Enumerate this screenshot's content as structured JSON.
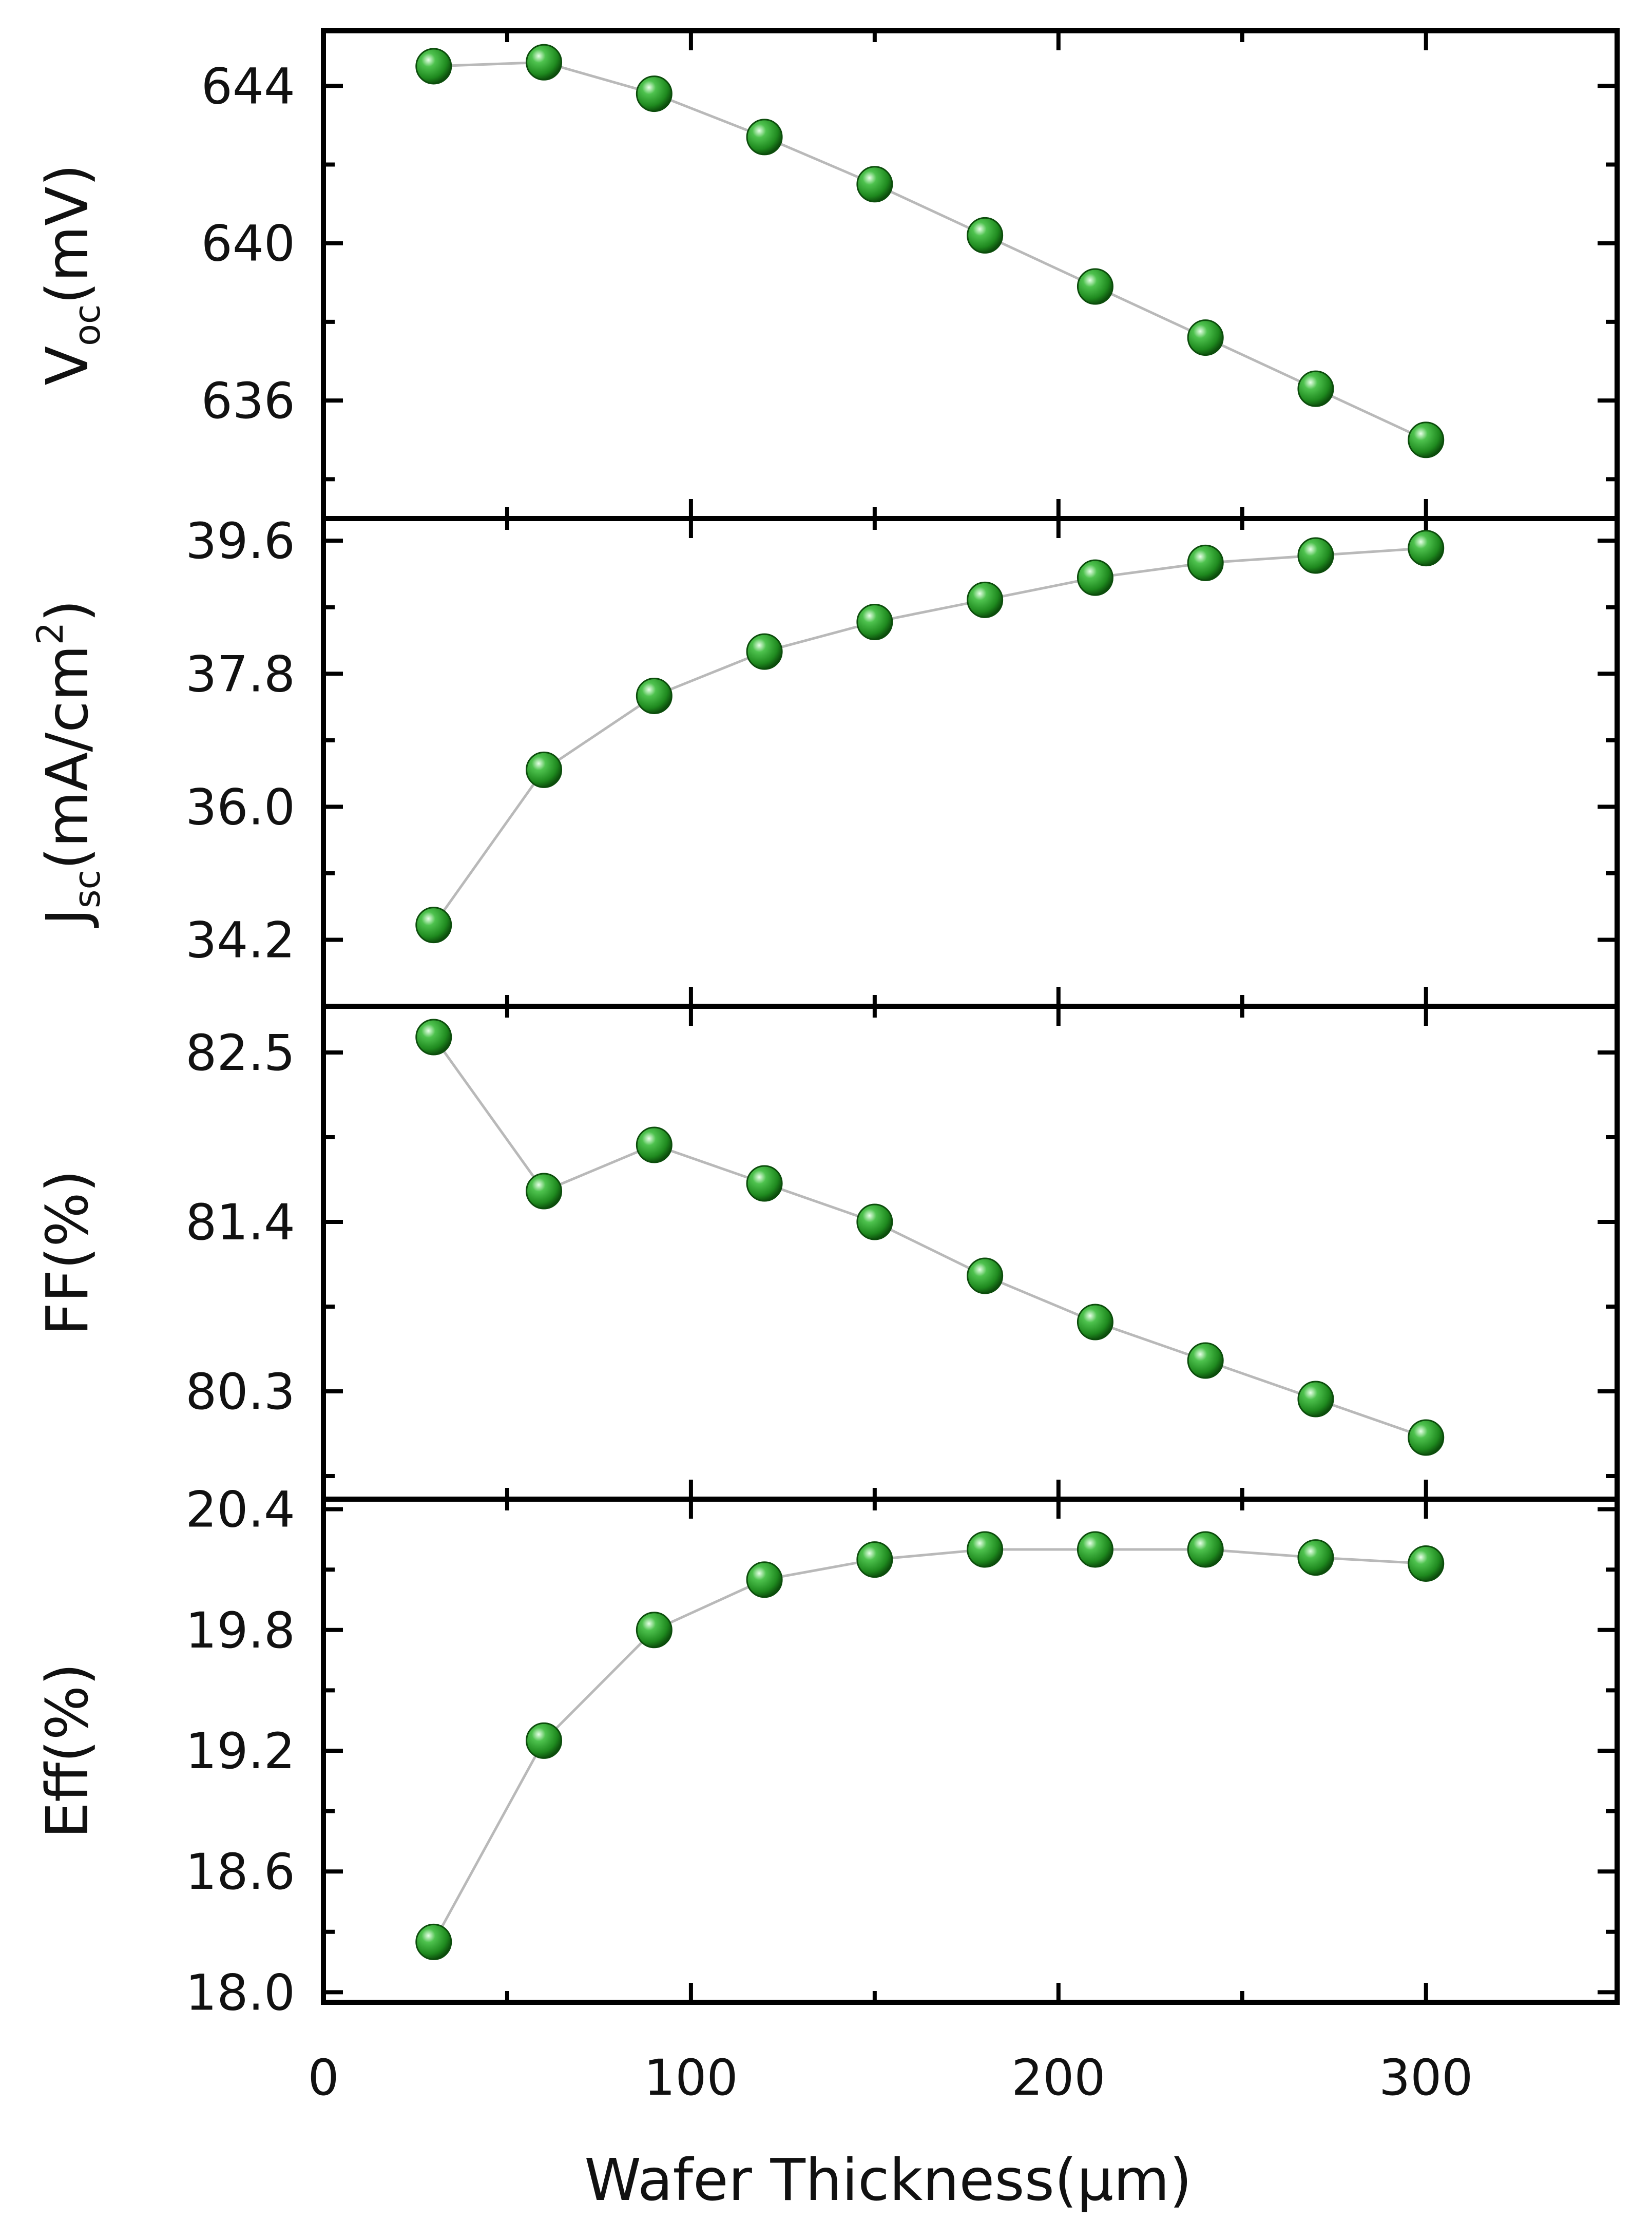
{
  "chart_data": {
    "type": "scatter",
    "layout": "four vertically stacked panels sharing one x axis",
    "grid": false,
    "x_axis": {
      "label": "Wafer Thickness(μm)",
      "range": [
        0,
        352
      ],
      "major_ticks": [
        0,
        100,
        200,
        300
      ],
      "tick_labels": [
        "0",
        "100",
        "200",
        "300"
      ],
      "minor_ticks": [
        50,
        150,
        250
      ]
    },
    "x": [
      30,
      60,
      90,
      120,
      150,
      180,
      210,
      240,
      270,
      300
    ],
    "colors": {
      "marker": "#1f8a1f",
      "marker_edge": "#0c4d0c",
      "connector": "#b9b9b9",
      "frame": "#000000"
    },
    "marker": "green sphere",
    "panels": [
      {
        "key": "voc",
        "ylabel": {
          "main": "V",
          "sub": "oc",
          "suffix": "(mV)"
        },
        "ylim": [
          633,
          645.4
        ],
        "yticks": [
          636,
          640,
          644
        ],
        "ytick_labels": [
          "636",
          "640",
          "644"
        ],
        "yminor": [
          634,
          638,
          642
        ],
        "values": [
          644.5,
          644.6,
          643.8,
          642.7,
          641.5,
          640.2,
          638.9,
          637.6,
          636.3,
          635.0
        ]
      },
      {
        "key": "jsc",
        "ylabel": {
          "main": "J",
          "sub": "sc",
          "suffix": "(mA/cm",
          "sup": "2",
          "suffix2": ")"
        },
        "ylim": [
          33.3,
          39.9
        ],
        "yticks": [
          34.2,
          36.0,
          37.8,
          39.6
        ],
        "ytick_labels": [
          "34.2",
          "36.0",
          "37.8",
          "39.6"
        ],
        "yminor": [
          33.3,
          35.1,
          36.9,
          38.7
        ],
        "values": [
          34.4,
          36.5,
          37.5,
          38.1,
          38.5,
          38.8,
          39.1,
          39.3,
          39.4,
          39.5
        ]
      },
      {
        "key": "ff",
        "ylabel": {
          "main": "FF(%)"
        },
        "ylim": [
          79.6,
          82.8
        ],
        "yticks": [
          80.3,
          81.4,
          82.5
        ],
        "ytick_labels": [
          "80.3",
          "81.4",
          "82.5"
        ],
        "yminor": [
          79.75,
          80.85,
          81.95
        ],
        "values": [
          82.6,
          81.6,
          81.9,
          81.65,
          81.4,
          81.05,
          80.75,
          80.5,
          80.25,
          80.0
        ]
      },
      {
        "key": "eff",
        "ylabel": {
          "main": "Eff(%)"
        },
        "ylim": [
          17.95,
          20.45
        ],
        "yticks": [
          18.0,
          18.6,
          19.2,
          19.8,
          20.4
        ],
        "ytick_labels": [
          "18.0",
          "18.6",
          "19.2",
          "19.8",
          "20.4"
        ],
        "yminor": [
          18.3,
          18.9,
          19.5,
          20.1
        ],
        "values": [
          18.25,
          19.25,
          19.8,
          20.05,
          20.15,
          20.2,
          20.2,
          20.2,
          20.16,
          20.13
        ]
      }
    ]
  }
}
